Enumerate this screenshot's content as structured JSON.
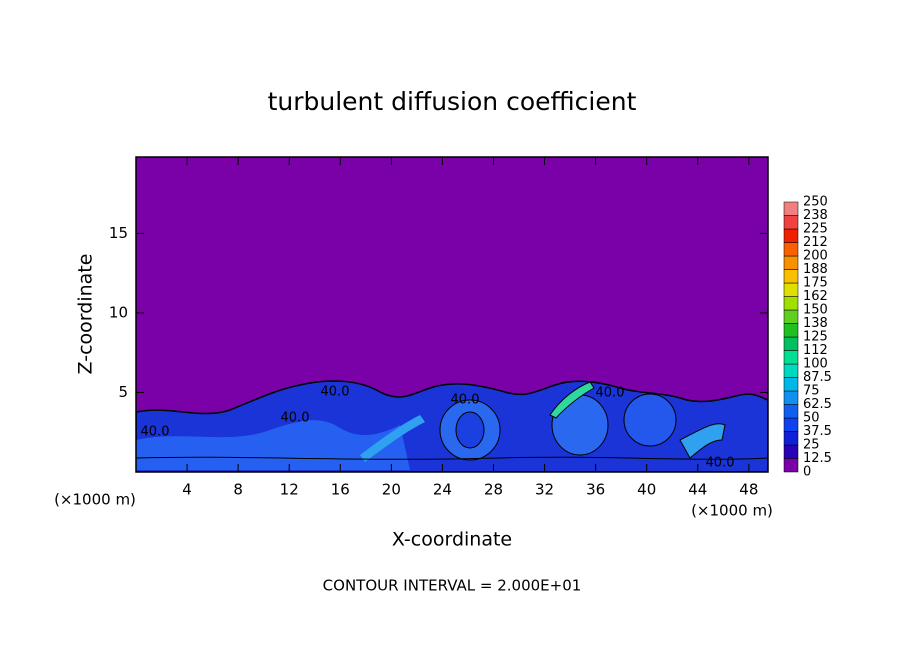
{
  "chart_data": {
    "type": "contour",
    "title": "turbulent diffusion coefficient",
    "xlabel": "X-coordinate",
    "ylabel": "Z-coordinate",
    "x_unit_label": "(×1000 m)",
    "footer": "CONTOUR INTERVAL = 2.000E+01",
    "xlim": [
      0,
      49.5
    ],
    "ylim": [
      0,
      19.8
    ],
    "xticks": [
      4,
      8,
      12,
      16,
      20,
      24,
      28,
      32,
      36,
      40,
      44,
      48
    ],
    "yticks": [
      5,
      10,
      15
    ],
    "contour_labels": [
      "40.0",
      "40.0",
      "40.0",
      "40.0",
      "40.0",
      "40.0"
    ],
    "colorbar": {
      "levels": [
        0,
        12.5,
        25,
        37.5,
        50,
        62.5,
        75,
        87.5,
        100,
        112,
        125,
        138,
        150,
        162,
        175,
        188,
        200,
        212,
        225,
        238,
        250
      ],
      "colors": [
        "#7a00a8",
        "#2a00b8",
        "#1020d8",
        "#1040f0",
        "#1060f0",
        "#1090f0",
        "#00b8e8",
        "#00d8c0",
        "#00e090",
        "#00c060",
        "#20c020",
        "#60d020",
        "#a0e000",
        "#e0e000",
        "#f8c000",
        "#f89000",
        "#f86000",
        "#f02000",
        "#f04040",
        "#f08080"
      ]
    }
  }
}
